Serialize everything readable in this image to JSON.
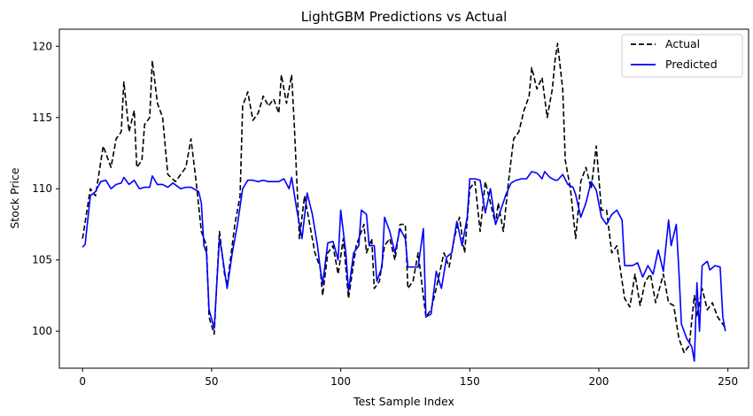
{
  "chart_data": {
    "type": "line",
    "title": "LightGBM Predictions vs Actual",
    "xlabel": "Test Sample Index",
    "ylabel": "Stock Price",
    "xlim": [
      -9,
      258
    ],
    "ylim": [
      97.4,
      121.2
    ],
    "xticks": [
      0,
      50,
      100,
      150,
      200,
      250
    ],
    "yticks": [
      100,
      105,
      110,
      115,
      120
    ],
    "grid": false,
    "legend_position": "top-right",
    "series": [
      {
        "name": "Actual",
        "color": "#000000",
        "dash": true,
        "points": [
          [
            0,
            106.5
          ],
          [
            3,
            110
          ],
          [
            5,
            109.5
          ],
          [
            8,
            113
          ],
          [
            11,
            111.5
          ],
          [
            13,
            113.5
          ],
          [
            15,
            114
          ],
          [
            16,
            117.5
          ],
          [
            18,
            114
          ],
          [
            20,
            115.5
          ],
          [
            21,
            111.5
          ],
          [
            23,
            112
          ],
          [
            24,
            114.5
          ],
          [
            26,
            115
          ],
          [
            27,
            119
          ],
          [
            29,
            116
          ],
          [
            31,
            115
          ],
          [
            33,
            111
          ],
          [
            36,
            110.5
          ],
          [
            40,
            111.5
          ],
          [
            42,
            113.5
          ],
          [
            44,
            110.5
          ],
          [
            46,
            107
          ],
          [
            48,
            106
          ],
          [
            49,
            101
          ],
          [
            51,
            99.8
          ],
          [
            53,
            107
          ],
          [
            55,
            104
          ],
          [
            56,
            103.2
          ],
          [
            59,
            107.5
          ],
          [
            61,
            109.5
          ],
          [
            62,
            115.8
          ],
          [
            64,
            116.8
          ],
          [
            66,
            114.8
          ],
          [
            68,
            115.3
          ],
          [
            70,
            116.5
          ],
          [
            72,
            115.8
          ],
          [
            74,
            116.3
          ],
          [
            76,
            115.3
          ],
          [
            77,
            118
          ],
          [
            79,
            116
          ],
          [
            81,
            118
          ],
          [
            82,
            114.5
          ],
          [
            84,
            106.5
          ],
          [
            86,
            109.5
          ],
          [
            88,
            107.5
          ],
          [
            90,
            105.5
          ],
          [
            92,
            104.5
          ],
          [
            93,
            102.5
          ],
          [
            95,
            105.5
          ],
          [
            97,
            106
          ],
          [
            99,
            104
          ],
          [
            101,
            106.5
          ],
          [
            103,
            102.3
          ],
          [
            106,
            106
          ],
          [
            109,
            107.5
          ],
          [
            110,
            105.5
          ],
          [
            112,
            106.5
          ],
          [
            113,
            103
          ],
          [
            115,
            103.5
          ],
          [
            117,
            106
          ],
          [
            119,
            106.5
          ],
          [
            121,
            105
          ],
          [
            123,
            107.5
          ],
          [
            125,
            107.5
          ],
          [
            126,
            103
          ],
          [
            128,
            103.5
          ],
          [
            130,
            105.5
          ],
          [
            133,
            101
          ],
          [
            135,
            101.5
          ],
          [
            137,
            103
          ],
          [
            140,
            105.5
          ],
          [
            142,
            104.5
          ],
          [
            144,
            106.5
          ],
          [
            146,
            108
          ],
          [
            148,
            105.5
          ],
          [
            150,
            110
          ],
          [
            152,
            110.5
          ],
          [
            154,
            107
          ],
          [
            156,
            110.5
          ],
          [
            158,
            109
          ],
          [
            160,
            107.5
          ],
          [
            161,
            109
          ],
          [
            163,
            107
          ],
          [
            165,
            110.5
          ],
          [
            167,
            113.5
          ],
          [
            169,
            114
          ],
          [
            171,
            115.5
          ],
          [
            173,
            116.5
          ],
          [
            174,
            118.5
          ],
          [
            176,
            117
          ],
          [
            178,
            117.8
          ],
          [
            180,
            115
          ],
          [
            182,
            117
          ],
          [
            183,
            119
          ],
          [
            184,
            120.2
          ],
          [
            186,
            117
          ],
          [
            187,
            112
          ],
          [
            189,
            110
          ],
          [
            191,
            106.5
          ],
          [
            193,
            110.5
          ],
          [
            195,
            111.5
          ],
          [
            197,
            110
          ],
          [
            199,
            113
          ],
          [
            201,
            108.5
          ],
          [
            203,
            108.5
          ],
          [
            205,
            105.5
          ],
          [
            207,
            106
          ],
          [
            209,
            103.5
          ],
          [
            210,
            102.3
          ],
          [
            212,
            101.7
          ],
          [
            214,
            104
          ],
          [
            216,
            101.8
          ],
          [
            218,
            103.5
          ],
          [
            220,
            104
          ],
          [
            222,
            102
          ],
          [
            225,
            104
          ],
          [
            227,
            102
          ],
          [
            229,
            101.8
          ],
          [
            231,
            99.5
          ],
          [
            233,
            98.5
          ],
          [
            235,
            99
          ],
          [
            237,
            102.5
          ],
          [
            238,
            101
          ],
          [
            240,
            103
          ],
          [
            242,
            101.5
          ],
          [
            244,
            102
          ],
          [
            246,
            101
          ],
          [
            248,
            100.5
          ],
          [
            249,
            100.2
          ]
        ]
      },
      {
        "name": "Predicted",
        "color": "#0000ff",
        "dash": false,
        "points": [
          [
            0,
            105.9
          ],
          [
            1,
            106.1
          ],
          [
            3,
            109.5
          ],
          [
            5,
            109.8
          ],
          [
            7,
            110.5
          ],
          [
            9,
            110.6
          ],
          [
            11,
            110
          ],
          [
            13,
            110.3
          ],
          [
            15,
            110.4
          ],
          [
            16,
            110.8
          ],
          [
            18,
            110.3
          ],
          [
            20,
            110.6
          ],
          [
            22,
            110
          ],
          [
            24,
            110.1
          ],
          [
            26,
            110.1
          ],
          [
            27,
            110.9
          ],
          [
            29,
            110.3
          ],
          [
            31,
            110.3
          ],
          [
            33,
            110.1
          ],
          [
            35,
            110.4
          ],
          [
            38,
            110
          ],
          [
            40,
            110.1
          ],
          [
            42,
            110.1
          ],
          [
            45,
            109.8
          ],
          [
            46,
            109
          ],
          [
            47,
            106
          ],
          [
            48,
            105.5
          ],
          [
            49,
            101.5
          ],
          [
            51,
            100.2
          ],
          [
            53,
            106.5
          ],
          [
            54,
            105.5
          ],
          [
            56,
            103
          ],
          [
            58,
            105.5
          ],
          [
            60,
            107.5
          ],
          [
            62,
            110
          ],
          [
            64,
            110.6
          ],
          [
            66,
            110.6
          ],
          [
            68,
            110.5
          ],
          [
            70,
            110.6
          ],
          [
            72,
            110.5
          ],
          [
            74,
            110.5
          ],
          [
            76,
            110.5
          ],
          [
            78,
            110.7
          ],
          [
            80,
            110
          ],
          [
            81,
            110.8
          ],
          [
            83,
            108.5
          ],
          [
            85,
            106.5
          ],
          [
            87,
            109.7
          ],
          [
            89,
            108.2
          ],
          [
            91,
            106
          ],
          [
            92,
            104.5
          ],
          [
            93,
            103.3
          ],
          [
            95,
            106.2
          ],
          [
            97,
            106.3
          ],
          [
            99,
            105
          ],
          [
            100,
            108.5
          ],
          [
            102,
            105.5
          ],
          [
            103,
            102.8
          ],
          [
            105,
            105.5
          ],
          [
            107,
            106
          ],
          [
            108,
            108.5
          ],
          [
            110,
            108.2
          ],
          [
            111,
            106
          ],
          [
            113,
            106
          ],
          [
            114,
            103.5
          ],
          [
            116,
            104.5
          ],
          [
            117,
            108
          ],
          [
            119,
            107
          ],
          [
            121,
            105.5
          ],
          [
            123,
            107.2
          ],
          [
            125,
            106.5
          ],
          [
            126,
            104.5
          ],
          [
            128,
            104.5
          ],
          [
            130,
            104.5
          ],
          [
            132,
            107.2
          ],
          [
            133,
            101
          ],
          [
            135,
            101.2
          ],
          [
            137,
            104.2
          ],
          [
            139,
            103
          ],
          [
            141,
            105.2
          ],
          [
            143,
            105.5
          ],
          [
            145,
            107.7
          ],
          [
            147,
            106
          ],
          [
            149,
            108
          ],
          [
            150,
            110.7
          ],
          [
            152,
            110.7
          ],
          [
            154,
            110.6
          ],
          [
            156,
            108.3
          ],
          [
            158,
            110
          ],
          [
            160,
            107.5
          ],
          [
            162,
            108.5
          ],
          [
            164,
            109.6
          ],
          [
            166,
            110.4
          ],
          [
            168,
            110.6
          ],
          [
            170,
            110.7
          ],
          [
            172,
            110.7
          ],
          [
            174,
            111.2
          ],
          [
            176,
            111.1
          ],
          [
            178,
            110.7
          ],
          [
            179,
            111.2
          ],
          [
            181,
            110.8
          ],
          [
            183,
            110.6
          ],
          [
            184,
            110.6
          ],
          [
            186,
            111
          ],
          [
            188,
            110.3
          ],
          [
            190,
            110.1
          ],
          [
            191,
            109.6
          ],
          [
            193,
            108
          ],
          [
            195,
            109
          ],
          [
            197,
            110.5
          ],
          [
            199,
            109.9
          ],
          [
            201,
            108
          ],
          [
            203,
            107.5
          ],
          [
            205,
            108.2
          ],
          [
            207,
            108.5
          ],
          [
            209,
            107.8
          ],
          [
            210,
            104.6
          ],
          [
            213,
            104.6
          ],
          [
            215,
            104.8
          ],
          [
            217,
            103.8
          ],
          [
            219,
            104.6
          ],
          [
            221,
            104
          ],
          [
            223,
            105.7
          ],
          [
            225,
            104.2
          ],
          [
            227,
            107.8
          ],
          [
            228,
            106
          ],
          [
            230,
            107.5
          ],
          [
            231,
            104.3
          ],
          [
            232,
            100.5
          ],
          [
            234,
            99.5
          ],
          [
            236,
            98.9
          ],
          [
            237,
            97.9
          ],
          [
            238,
            103.4
          ],
          [
            239,
            100
          ],
          [
            240,
            104.6
          ],
          [
            242,
            104.9
          ],
          [
            243,
            104.3
          ],
          [
            245,
            104.6
          ],
          [
            247,
            104.5
          ],
          [
            248,
            101
          ],
          [
            249,
            100
          ]
        ]
      }
    ]
  }
}
